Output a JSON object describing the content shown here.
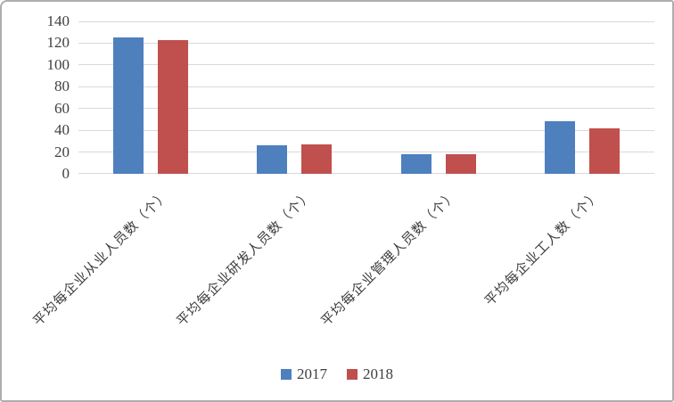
{
  "chart_data": {
    "type": "bar",
    "title": "",
    "categories": [
      "平均每企业从业人员数（个）",
      "平均每企业研发人员数（个）",
      "平均每企业管理人员数（个）",
      "平均每企业工人数（个）"
    ],
    "series": [
      {
        "name": "2017",
        "color": "#4E80BD",
        "values": [
          125,
          26,
          18,
          48
        ]
      },
      {
        "name": "2018",
        "color": "#C0504D",
        "values": [
          123,
          27,
          18,
          42
        ]
      }
    ],
    "ylim": [
      0,
      140
    ],
    "yticks": [
      0,
      20,
      40,
      60,
      80,
      100,
      120,
      140
    ],
    "xlabel": "",
    "ylabel": "",
    "grid": true,
    "gridline_color": "#d9d9d9",
    "legend_position": "bottom",
    "legend_entries": [
      "2017",
      "2018"
    ]
  },
  "frame": {
    "border_color": "#aeaeae",
    "background": "#ffffff"
  }
}
